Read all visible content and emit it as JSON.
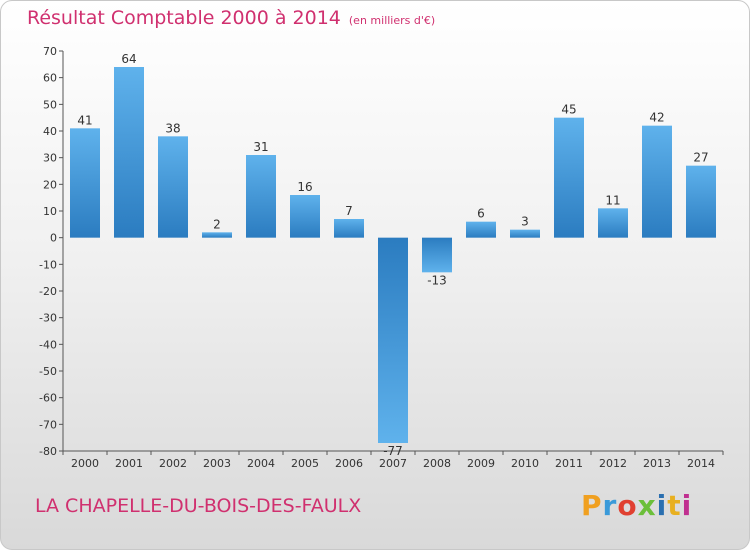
{
  "chart_data": {
    "type": "bar",
    "title": "Résultat Comptable 2000 à 2014",
    "subtitle": "(en milliers d'€)",
    "categories": [
      "2000",
      "2001",
      "2002",
      "2003",
      "2004",
      "2005",
      "2006",
      "2007",
      "2008",
      "2009",
      "2010",
      "2011",
      "2012",
      "2013",
      "2014"
    ],
    "values": [
      41,
      64,
      38,
      2,
      31,
      16,
      7,
      -77,
      -13,
      6,
      3,
      45,
      11,
      42,
      27
    ],
    "value_labels": [
      "41",
      "64",
      "38",
      "2",
      "31",
      "16",
      "7",
      "-77",
      "-13",
      "6",
      "3",
      "45",
      "11",
      "42",
      "27"
    ],
    "ylim": [
      -80,
      70
    ],
    "yticks": [
      70,
      60,
      50,
      40,
      30,
      20,
      10,
      0,
      -10,
      -20,
      -30,
      -40,
      -50,
      -60,
      -70,
      -80
    ],
    "ytick_labels": [
      "70",
      "60",
      "50",
      "40",
      "30",
      "20",
      "10",
      "0",
      "-10",
      "-20",
      "-30",
      "-40",
      "-50",
      "-60",
      "-70",
      "-80"
    ],
    "xlabel": "",
    "ylabel": "",
    "grid": false,
    "bar_color": "#3b8fd0"
  },
  "footer": {
    "place_name": "LA CHAPELLE-DU-BOIS-DES-FAULX",
    "logo_letters": [
      "P",
      "r",
      "o",
      "x",
      "i",
      "t",
      "i"
    ],
    "logo_colors": [
      "#f0a020",
      "#3a9ad9",
      "#e04030",
      "#6cbf3a",
      "#2a6fb0",
      "#e8b020",
      "#c03090"
    ]
  },
  "colors": {
    "accent": "#d0306f",
    "bar_top": "#5fb2ec",
    "bar_bottom": "#2b7cc0"
  }
}
